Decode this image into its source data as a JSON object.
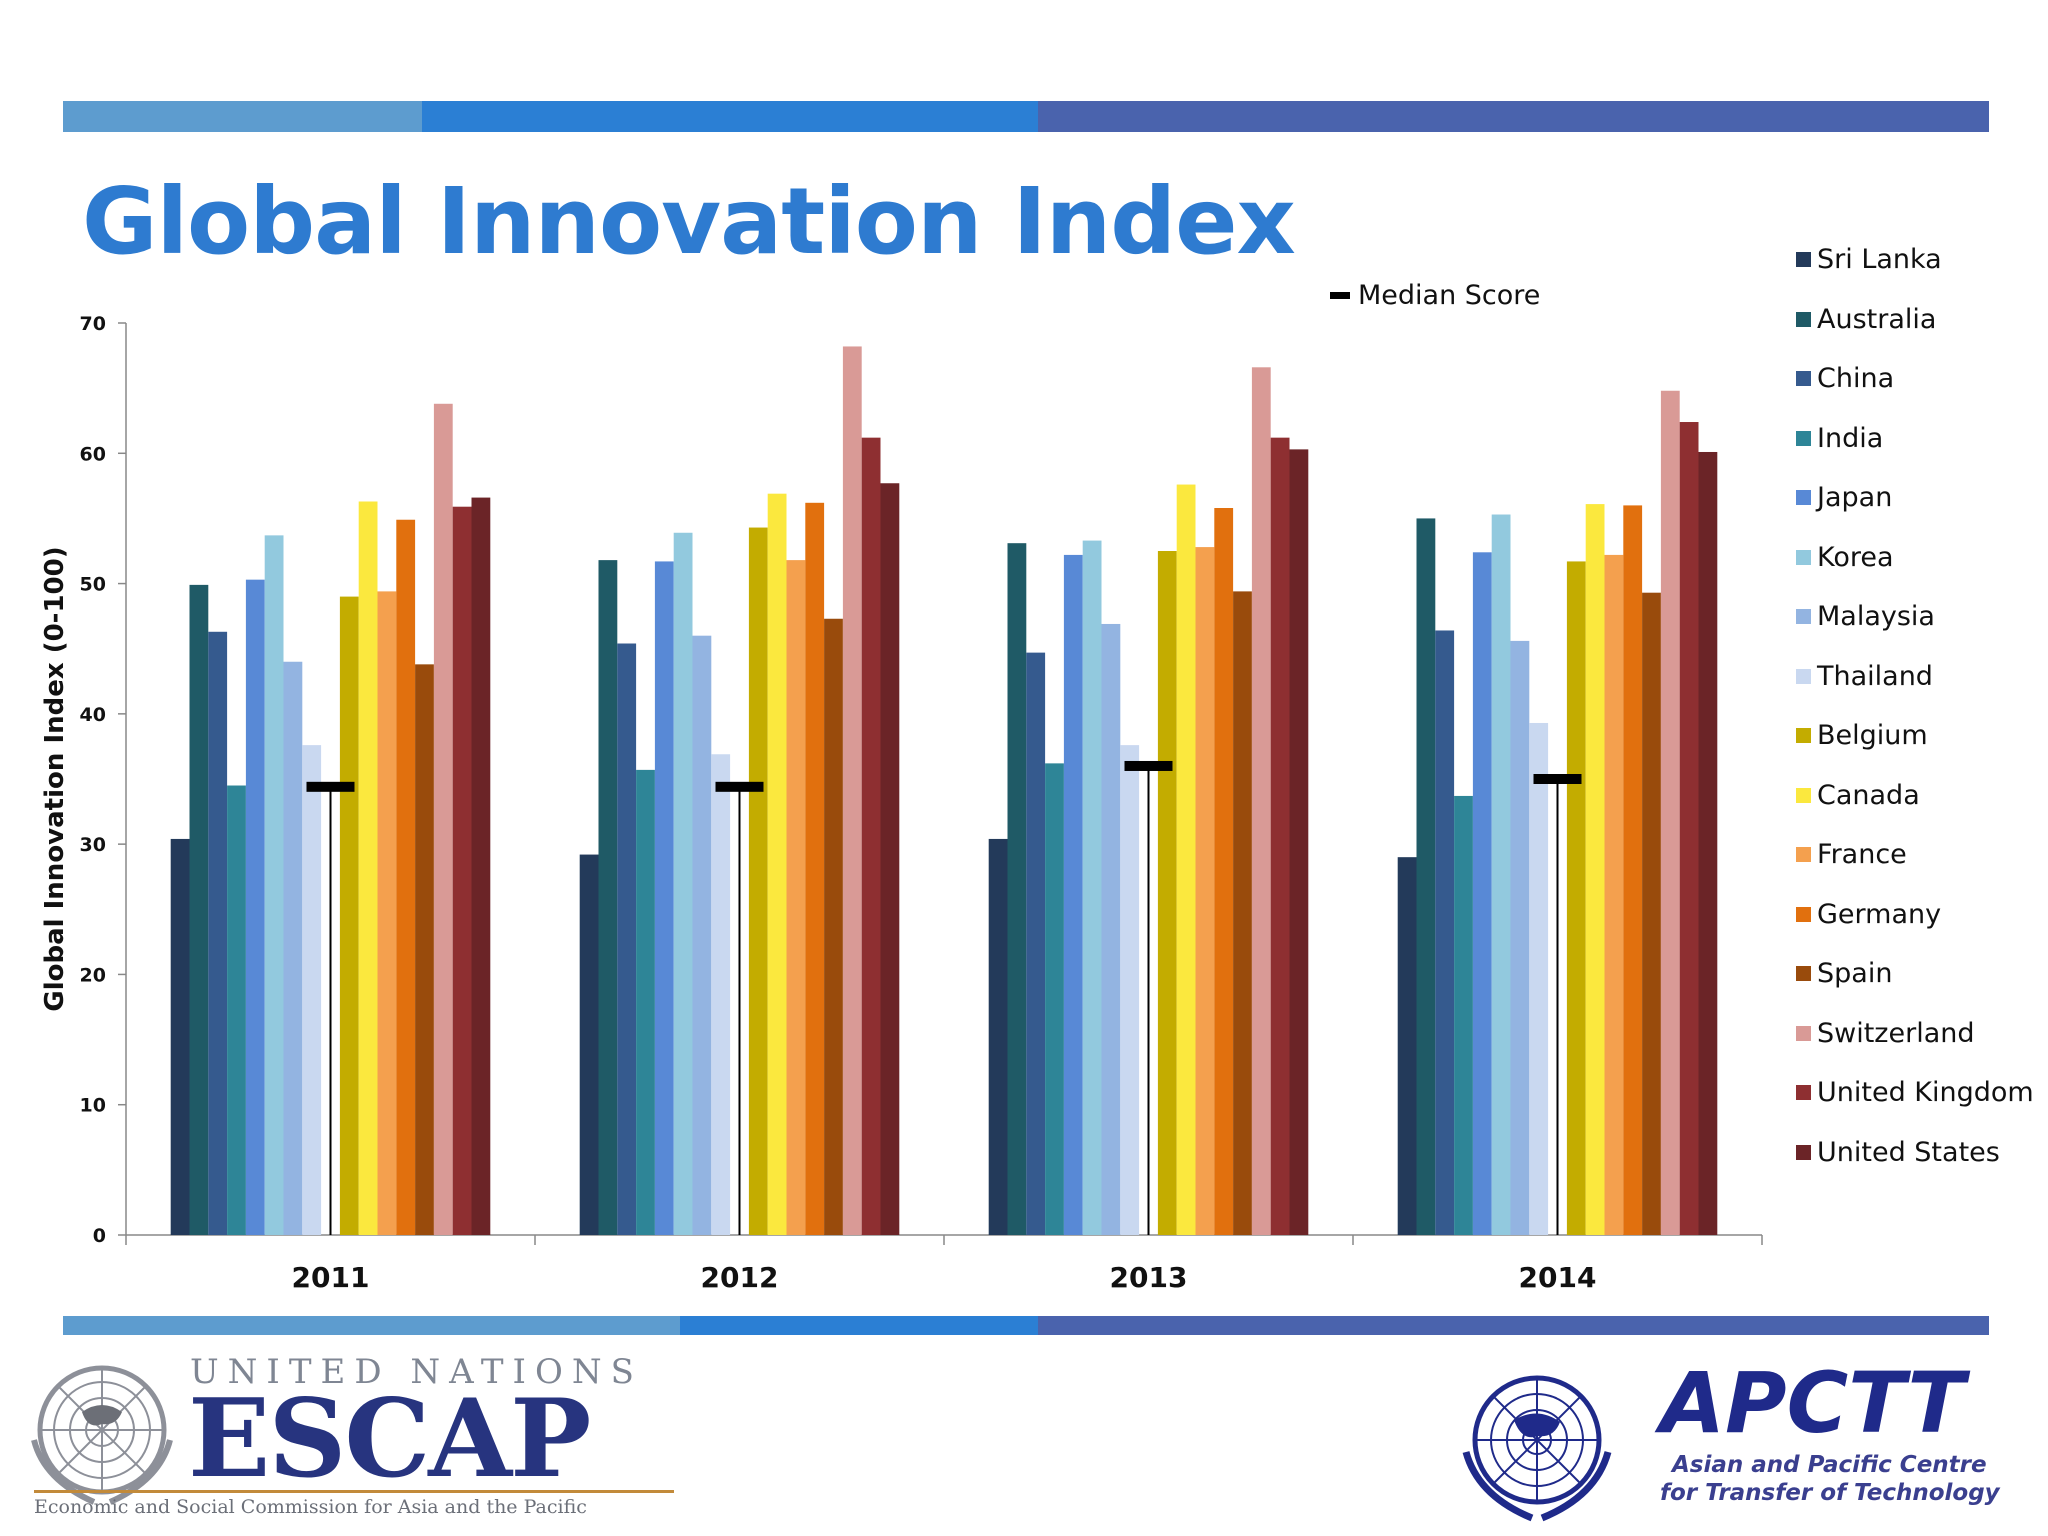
{
  "page": {
    "title": "Global Innovation Index"
  },
  "bands": {
    "top": [
      "#5d9ccf",
      "#2b7fd4",
      "#4a63ad"
    ],
    "bottom": [
      "#5d9ccf",
      "#2b7fd4",
      "#4a63ad"
    ]
  },
  "median_legend_label": "Median Score",
  "chart_data": {
    "type": "bar",
    "title": "Global Innovation Index",
    "ylabel": "Global Innovation Index (0-100)",
    "xlabel": "",
    "ylim": [
      0,
      70
    ],
    "yticks": [
      0,
      10,
      20,
      30,
      40,
      50,
      60,
      70
    ],
    "categories": [
      "2011",
      "2012",
      "2013",
      "2014"
    ],
    "legend_position": "right",
    "series": [
      {
        "name": "Sri Lanka",
        "color": "#233a5a",
        "values": [
          30.4,
          29.2,
          30.4,
          29.0
        ]
      },
      {
        "name": "Australia",
        "color": "#1f5a66",
        "values": [
          49.9,
          51.8,
          53.1,
          55.0
        ]
      },
      {
        "name": "China",
        "color": "#355a8e",
        "values": [
          46.3,
          45.4,
          44.7,
          46.4
        ]
      },
      {
        "name": "India",
        "color": "#2e8597",
        "values": [
          34.5,
          35.7,
          36.2,
          33.7
        ]
      },
      {
        "name": "Japan",
        "color": "#5889d6",
        "values": [
          50.3,
          51.7,
          52.2,
          52.4
        ]
      },
      {
        "name": "Korea",
        "color": "#92c9de",
        "values": [
          53.7,
          53.9,
          53.3,
          55.3
        ]
      },
      {
        "name": "Malaysia",
        "color": "#93b4e1",
        "values": [
          44.0,
          46.0,
          46.9,
          45.6
        ]
      },
      {
        "name": "Thailand",
        "color": "#c9d8f0",
        "values": [
          37.6,
          36.9,
          37.6,
          39.3
        ]
      },
      {
        "name": "Belgium",
        "color": "#c3ac00",
        "values": [
          49.0,
          54.3,
          52.5,
          51.7
        ]
      },
      {
        "name": "Canada",
        "color": "#fbe83e",
        "values": [
          56.3,
          56.9,
          57.6,
          56.1
        ]
      },
      {
        "name": "France",
        "color": "#f4a04e",
        "values": [
          49.4,
          51.8,
          52.8,
          52.2
        ]
      },
      {
        "name": "Germany",
        "color": "#e1700e",
        "values": [
          54.9,
          56.2,
          55.8,
          56.0
        ]
      },
      {
        "name": "Spain",
        "color": "#994b0c",
        "values": [
          43.8,
          47.3,
          49.4,
          49.3
        ]
      },
      {
        "name": "Switzerland",
        "color": "#d99a96",
        "values": [
          63.8,
          68.2,
          66.6,
          64.8
        ]
      },
      {
        "name": "United Kingdom",
        "color": "#8e2f31",
        "values": [
          55.9,
          61.2,
          61.2,
          62.4
        ]
      },
      {
        "name": "United States",
        "color": "#6b2427",
        "values": [
          56.6,
          57.7,
          60.3,
          60.1
        ]
      }
    ],
    "median": {
      "name": "Median Score",
      "values": [
        34.4,
        34.4,
        36.0,
        35.0
      ]
    }
  },
  "logos": {
    "escap": {
      "top_text": "UNITED NATIONS",
      "main_text": "ESCAP",
      "bottom_text": "Economic and Social Commission for Asia and the Pacific"
    },
    "apctt": {
      "main_text": "APCTT",
      "line1": "Asian and Pacific Centre",
      "line2": "for Transfer of Technology"
    }
  }
}
